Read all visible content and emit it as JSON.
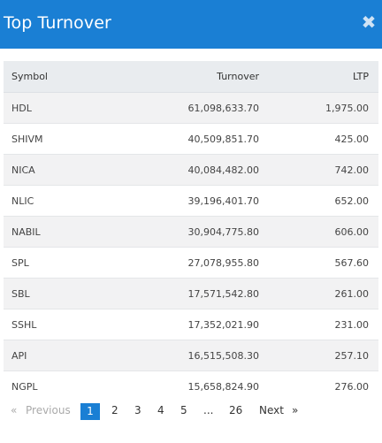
{
  "modal": {
    "title": "Top Turnover",
    "close_icon": "✖"
  },
  "table": {
    "headers": {
      "symbol": "Symbol",
      "turnover": "Turnover",
      "ltp": "LTP"
    },
    "rows": [
      {
        "symbol": "HDL",
        "turnover": "61,098,633.70",
        "ltp": "1,975.00"
      },
      {
        "symbol": "SHIVM",
        "turnover": "40,509,851.70",
        "ltp": "425.00"
      },
      {
        "symbol": "NICA",
        "turnover": "40,084,482.00",
        "ltp": "742.00"
      },
      {
        "symbol": "NLIC",
        "turnover": "39,196,401.70",
        "ltp": "652.00"
      },
      {
        "symbol": "NABIL",
        "turnover": "30,904,775.80",
        "ltp": "606.00"
      },
      {
        "symbol": "SPL",
        "turnover": "27,078,955.80",
        "ltp": "567.60"
      },
      {
        "symbol": "SBL",
        "turnover": "17,571,542.80",
        "ltp": "261.00"
      },
      {
        "symbol": "SSHL",
        "turnover": "17,352,021.90",
        "ltp": "231.00"
      },
      {
        "symbol": "API",
        "turnover": "16,515,508.30",
        "ltp": "257.10"
      },
      {
        "symbol": "NGPL",
        "turnover": "15,658,824.90",
        "ltp": "276.00"
      }
    ]
  },
  "pagination": {
    "prev_arrow": "«",
    "previous": "Previous",
    "pages": [
      "1",
      "2",
      "3",
      "4",
      "5"
    ],
    "ellipsis": "...",
    "last": "26",
    "next": "Next",
    "next_arrow": "»",
    "current": "1"
  },
  "colors": {
    "header_bg": "#1a7fd4",
    "active_page": "#1a7fd4"
  }
}
